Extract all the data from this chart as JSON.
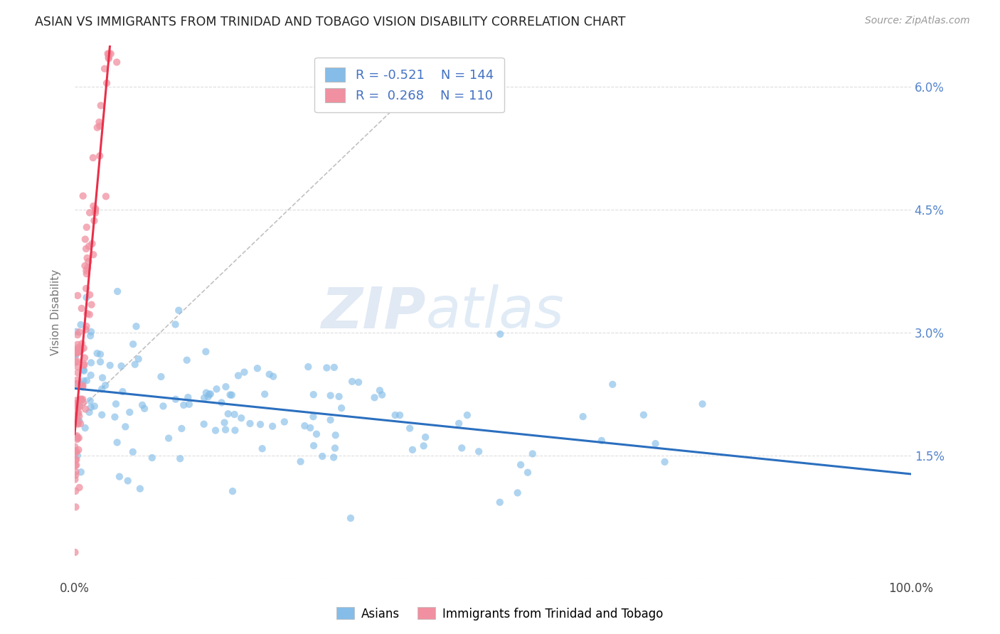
{
  "title": "ASIAN VS IMMIGRANTS FROM TRINIDAD AND TOBAGO VISION DISABILITY CORRELATION CHART",
  "source": "Source: ZipAtlas.com",
  "ylabel": "Vision Disability",
  "xlim": [
    0.0,
    1.0
  ],
  "ylim": [
    0.0,
    0.065
  ],
  "yticks": [
    0.0,
    0.015,
    0.03,
    0.045,
    0.06
  ],
  "ytick_labels": [
    "",
    "1.5%",
    "3.0%",
    "4.5%",
    "6.0%"
  ],
  "xtick_labels": [
    "0.0%",
    "100.0%"
  ],
  "background_color": "#ffffff",
  "grid_color": "#dddddd",
  "asian_color": "#85bde8",
  "trinidad_color": "#f090a0",
  "asian_line_color": "#2b6fbf",
  "trinidad_line_color": "#e8304a",
  "R_asian": -0.521,
  "N_asian": 144,
  "R_trinidad": 0.268,
  "N_trinidad": 110,
  "legend_text_color": "#4472c4",
  "title_color": "#222222",
  "axis_label_color": "#777777",
  "watermark_zip": "ZIP",
  "watermark_atlas": "atlas",
  "watermark_color_zip": "#c8d8ec",
  "watermark_color_atlas": "#a8c8e8"
}
